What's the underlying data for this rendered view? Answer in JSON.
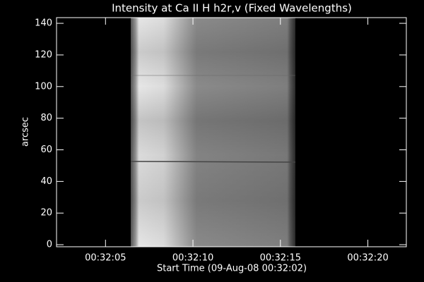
{
  "chart_data": {
    "type": "image",
    "title": "Intensity at Ca II H h2r,v (Fixed Wavelengths)",
    "x_label": "Start Time (09-Aug-08 00:32:02)",
    "y_label": "arcsec",
    "xlim": [
      0.2,
      20.2
    ],
    "xticks": [
      {
        "value": 3,
        "label": "00:32:05"
      },
      {
        "value": 8,
        "label": "00:32:10"
      },
      {
        "value": 13,
        "label": "00:32:15"
      },
      {
        "value": 18,
        "label": "00:32:20"
      }
    ],
    "ylim": [
      -1.3,
      143.6
    ],
    "yticks": [
      0,
      20,
      40,
      60,
      80,
      100,
      120,
      140
    ]
  }
}
